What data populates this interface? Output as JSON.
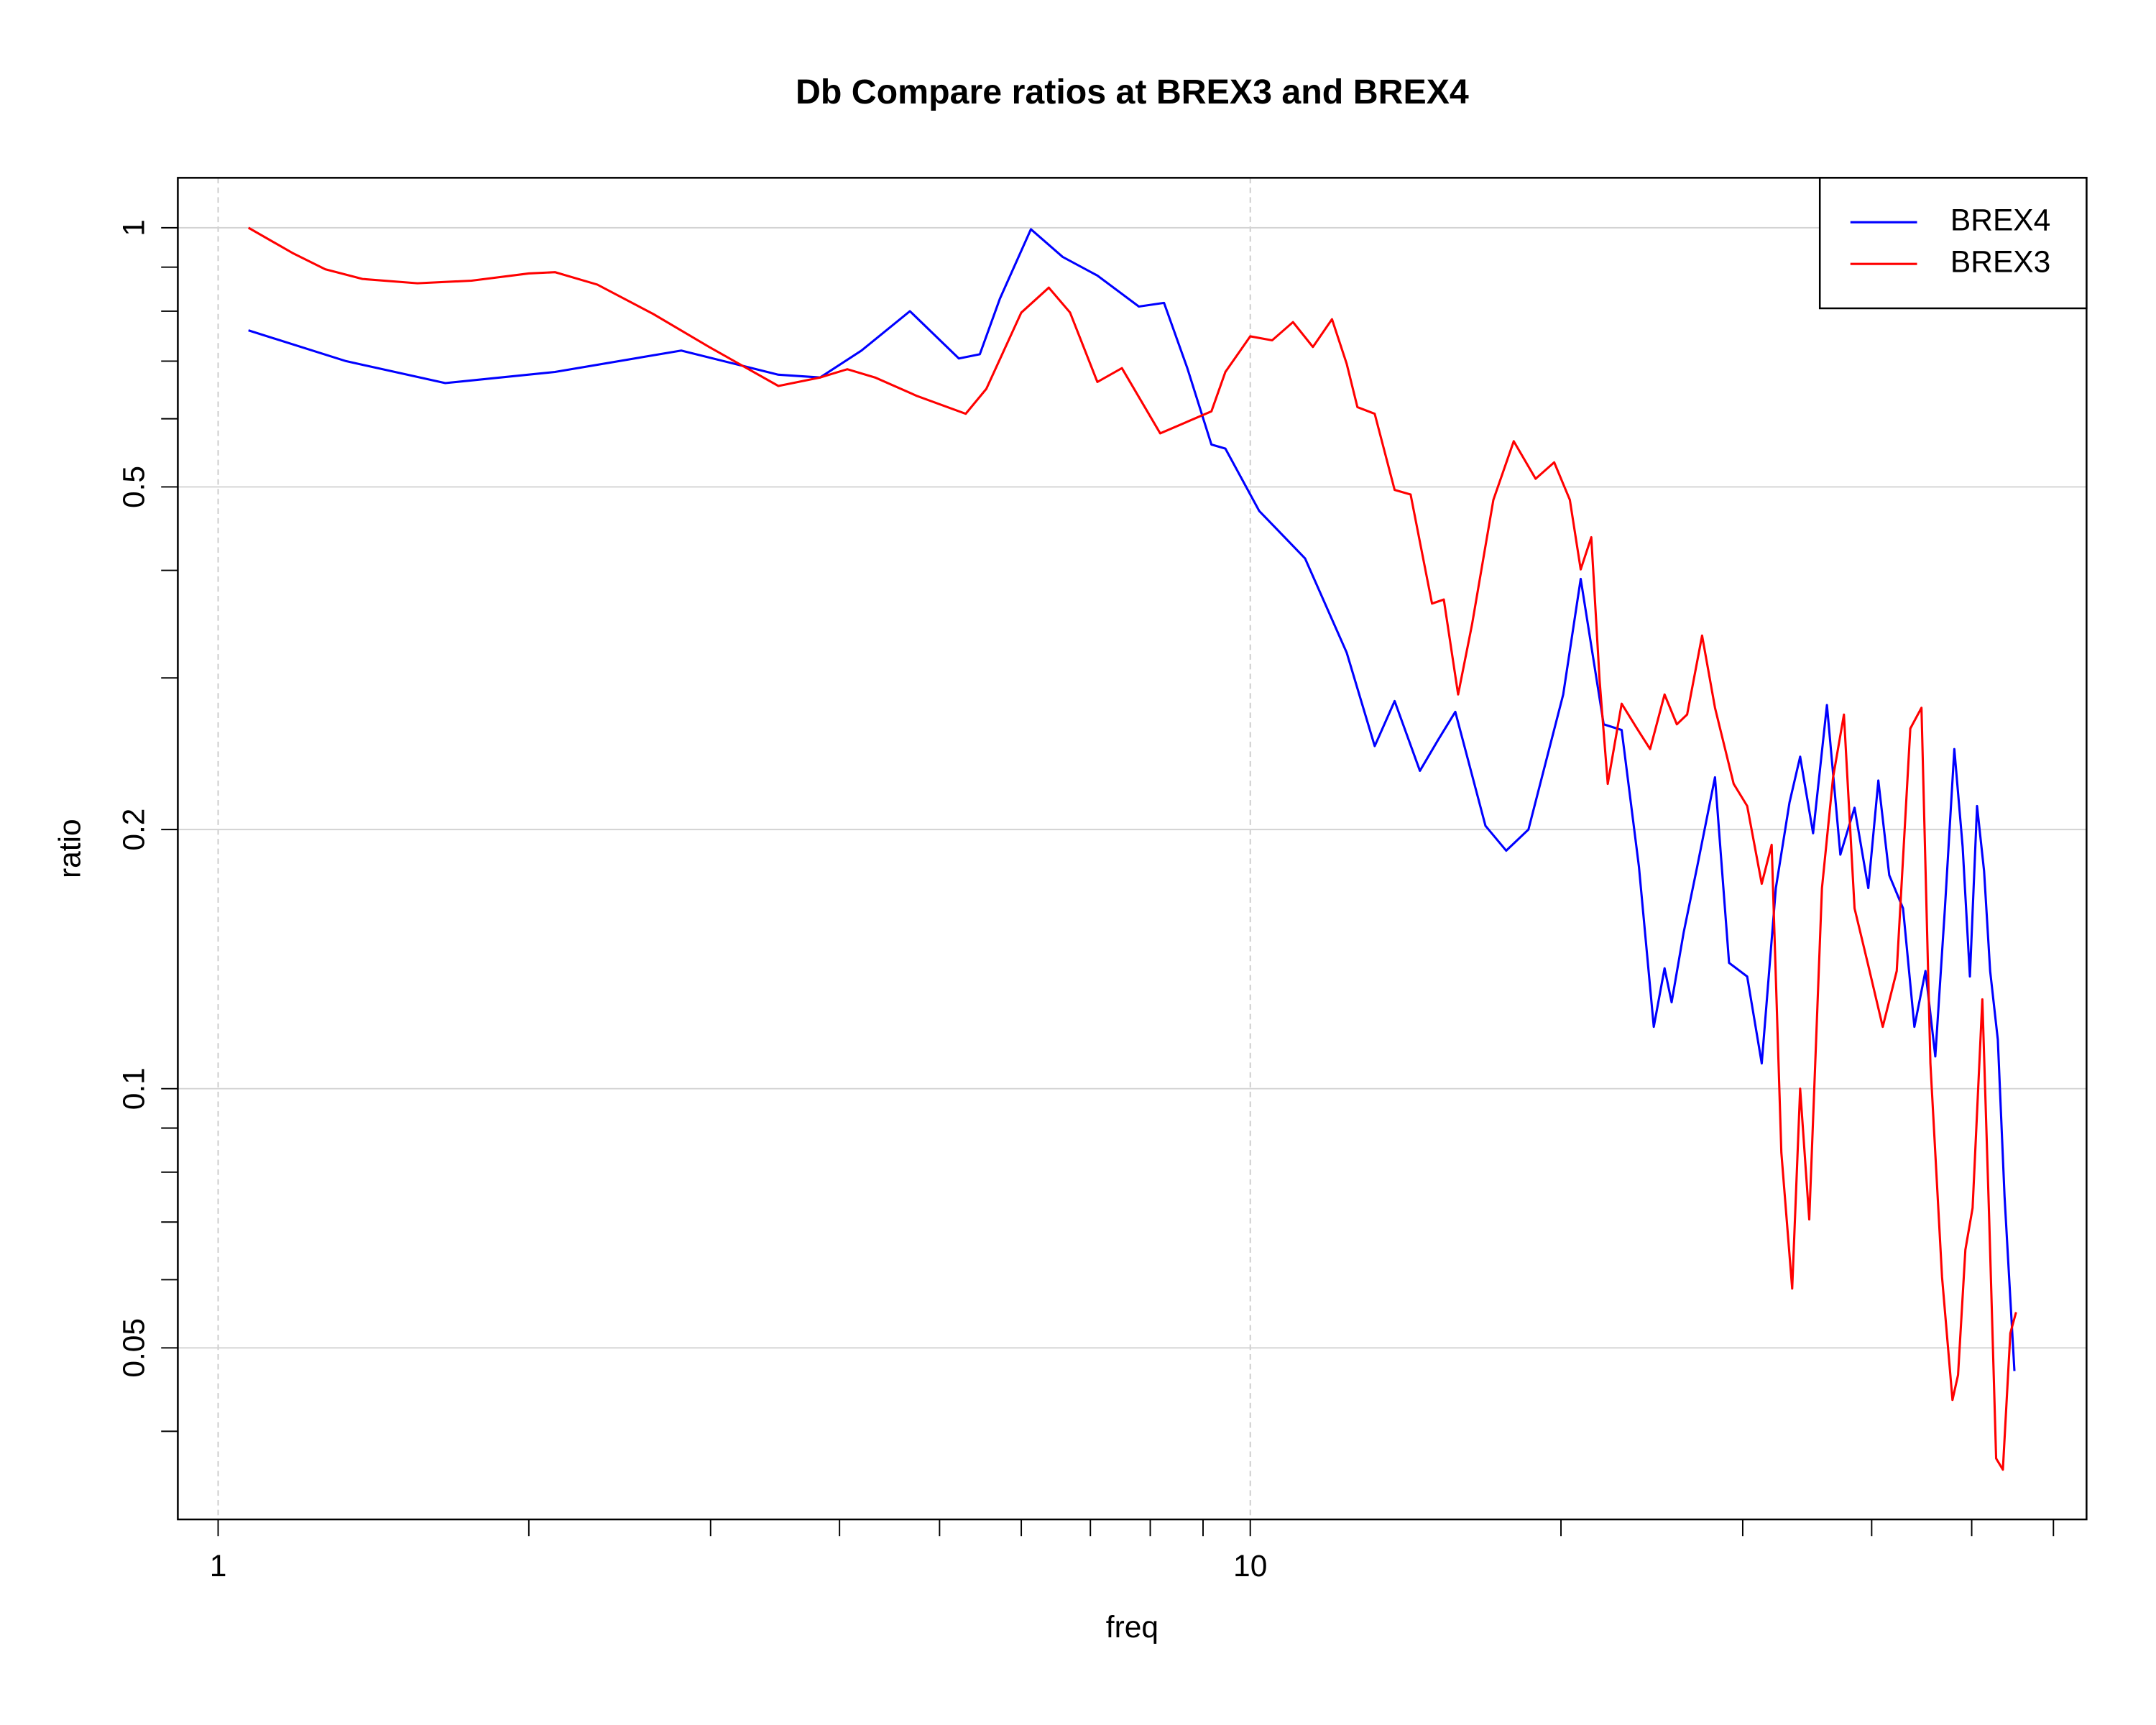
{
  "chart_data": {
    "type": "line",
    "title": "Db Compare ratios at BREX3 and BREX4",
    "xlabel": "freq",
    "ylabel": "ratio",
    "xscale": "log",
    "yscale": "log",
    "xlim": [
      0.914,
      64.6
    ],
    "ylim": [
      0.0316,
      1.143
    ],
    "xticks": [
      1,
      10
    ],
    "xminorticks": [
      2,
      3,
      4,
      5,
      6,
      7,
      8,
      9,
      20,
      30,
      40,
      50,
      60
    ],
    "yticks": [
      0.05,
      0.1,
      0.2,
      0.5,
      1
    ],
    "yminorticks": [
      0.04,
      0.06,
      0.07,
      0.08,
      0.09,
      0.3,
      0.4,
      0.6,
      0.7,
      0.8,
      0.9
    ],
    "grid": true,
    "legend": "topright",
    "series": [
      {
        "name": "BREX4",
        "color": "#0000ff",
        "x": [
          1.07,
          1.33,
          1.66,
          2.12,
          2.81,
          3.49,
          3.83,
          4.2,
          4.68,
          5.22,
          5.47,
          5.72,
          6.13,
          6.58,
          7.11,
          7.8,
          8.25,
          8.69,
          9.17,
          9.46,
          10.2,
          11.3,
          12.4,
          13.2,
          13.8,
          14.6,
          15.2,
          15.8,
          16.9,
          17.7,
          18.6,
          20.1,
          20.9,
          22.0,
          22.9,
          23.8,
          24.6,
          25.2,
          25.6,
          26.3,
          27.1,
          28.2,
          29.1,
          30.3,
          31.3,
          32.3,
          33.3,
          34.1,
          35.1,
          36.2,
          37.3,
          38.5,
          39.7,
          40.6,
          41.6,
          42.9,
          44.0,
          45.1,
          46.1,
          47.1,
          48.1,
          49.0,
          49.8,
          50.6,
          51.4,
          52.1,
          53.0,
          53.8,
          55.0
        ],
        "values": [
          0.76,
          0.7,
          0.66,
          0.68,
          0.72,
          0.675,
          0.67,
          0.72,
          0.8,
          0.705,
          0.713,
          0.827,
          0.996,
          0.925,
          0.88,
          0.81,
          0.818,
          0.687,
          0.56,
          0.554,
          0.469,
          0.413,
          0.321,
          0.25,
          0.282,
          0.234,
          0.254,
          0.274,
          0.202,
          0.189,
          0.2,
          0.287,
          0.391,
          0.265,
          0.261,
          0.181,
          0.118,
          0.138,
          0.126,
          0.152,
          0.181,
          0.23,
          0.14,
          0.135,
          0.107,
          0.171,
          0.215,
          0.243,
          0.198,
          0.279,
          0.187,
          0.212,
          0.171,
          0.228,
          0.177,
          0.162,
          0.118,
          0.137,
          0.109,
          0.162,
          0.248,
          0.191,
          0.135,
          0.213,
          0.179,
          0.137,
          0.114,
          0.075,
          0.047
        ]
      },
      {
        "name": "BREX3",
        "color": "#ff0000",
        "x": [
          1.07,
          1.18,
          1.27,
          1.38,
          1.56,
          1.76,
          2.0,
          2.12,
          2.33,
          2.64,
          2.99,
          3.49,
          3.83,
          4.07,
          4.33,
          4.75,
          5.3,
          5.55,
          6.0,
          6.38,
          6.69,
          7.11,
          7.51,
          8.18,
          9.17,
          9.46,
          10.0,
          10.5,
          11.0,
          11.5,
          12.0,
          12.4,
          12.7,
          13.2,
          13.8,
          14.3,
          15.0,
          15.4,
          15.9,
          16.4,
          17.2,
          18.0,
          18.9,
          19.7,
          20.4,
          20.9,
          21.4,
          21.8,
          22.2,
          22.9,
          23.7,
          24.4,
          25.2,
          25.9,
          26.5,
          27.4,
          28.2,
          29.4,
          30.3,
          31.3,
          32.0,
          32.7,
          33.5,
          34.1,
          34.8,
          35.8,
          36.7,
          37.6,
          38.5,
          39.7,
          41.0,
          42.3,
          43.6,
          44.7,
          45.6,
          46.8,
          47.9,
          48.5,
          49.3,
          50.1,
          51.2,
          52.0,
          52.8,
          53.6,
          54.5,
          55.2
        ],
        "values": [
          1.0,
          0.935,
          0.895,
          0.872,
          0.862,
          0.868,
          0.885,
          0.888,
          0.859,
          0.794,
          0.727,
          0.655,
          0.67,
          0.685,
          0.67,
          0.638,
          0.608,
          0.65,
          0.797,
          0.852,
          0.797,
          0.662,
          0.687,
          0.577,
          0.612,
          0.68,
          0.748,
          0.74,
          0.777,
          0.727,
          0.783,
          0.695,
          0.619,
          0.608,
          0.496,
          0.49,
          0.366,
          0.37,
          0.287,
          0.346,
          0.483,
          0.565,
          0.511,
          0.534,
          0.483,
          0.401,
          0.437,
          0.298,
          0.226,
          0.28,
          0.262,
          0.248,
          0.287,
          0.265,
          0.272,
          0.336,
          0.277,
          0.226,
          0.213,
          0.173,
          0.192,
          0.0843,
          0.0586,
          0.1,
          0.0705,
          0.171,
          0.23,
          0.272,
          0.162,
          0.139,
          0.118,
          0.137,
          0.262,
          0.277,
          0.107,
          0.0604,
          0.0435,
          0.0465,
          0.065,
          0.0727,
          0.127,
          0.07,
          0.0372,
          0.0361,
          0.052,
          0.055
        ]
      }
    ]
  }
}
